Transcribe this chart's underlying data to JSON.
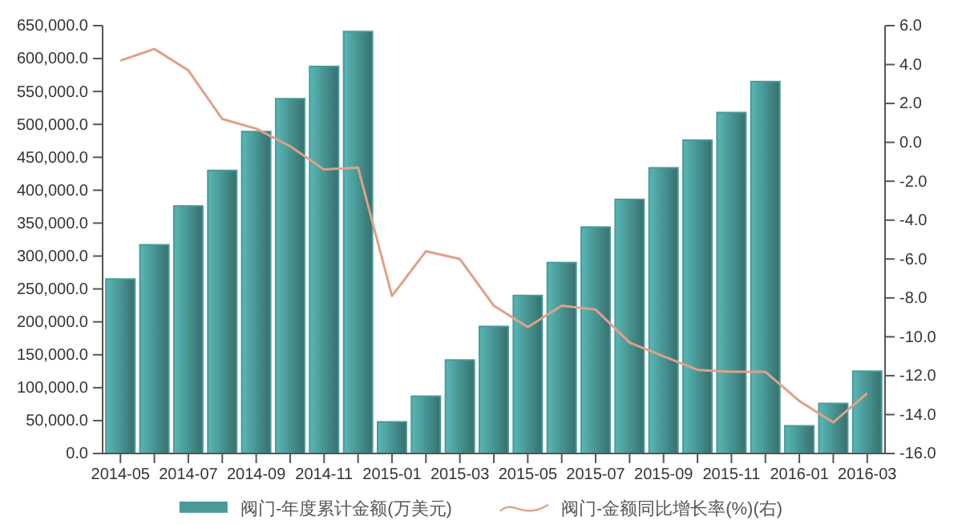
{
  "chart_data": {
    "type": "bar",
    "categories": [
      "2014-05",
      null,
      "2014-07",
      null,
      "2014-09",
      null,
      "2014-11",
      null,
      "2015-01",
      null,
      "2015-03",
      null,
      "2015-05",
      null,
      "2015-07",
      null,
      "2015-09",
      null,
      "2015-11",
      null,
      "2016-01",
      null,
      "2016-03"
    ],
    "series": [
      {
        "name": "阀门-年度累计金额(万美元)",
        "color": "#4a9a98",
        "values": [
          265000,
          317000,
          376000,
          430000,
          489000,
          539000,
          588000,
          641000,
          48000,
          87000,
          142000,
          193000,
          240000,
          290000,
          344000,
          386000,
          434000,
          476000,
          518000,
          565000,
          42000,
          76000,
          125000
        ]
      },
      {
        "name": "阀门-金额同比增长率(%)(右)",
        "type": "line",
        "axis": "y2",
        "color": "#e0a088",
        "values": [
          4.2,
          4.8,
          3.7,
          1.2,
          0.7,
          -0.2,
          -1.4,
          -1.3,
          -7.9,
          -5.6,
          -6.0,
          -8.4,
          -9.5,
          -8.4,
          -8.6,
          -10.3,
          -11.0,
          -11.7,
          -11.8,
          -11.8,
          -13.3,
          -14.4,
          -12.9
        ]
      }
    ],
    "ylim": [
      0,
      650000
    ],
    "yticks": [
      {
        "value": 0,
        "label": "0.0"
      },
      {
        "value": 50000,
        "label": "50,000.0"
      },
      {
        "value": 100000,
        "label": "100,000.0"
      },
      {
        "value": 150000,
        "label": "150,000.0"
      },
      {
        "value": 200000,
        "label": "200,000.0"
      },
      {
        "value": 250000,
        "label": "250,000.0"
      },
      {
        "value": 300000,
        "label": "300,000.0"
      },
      {
        "value": 350000,
        "label": "350,000.0"
      },
      {
        "value": 400000,
        "label": "400,000.0"
      },
      {
        "value": 450000,
        "label": "450,000.0"
      },
      {
        "value": 500000,
        "label": "500,000.0"
      },
      {
        "value": 550000,
        "label": "550,000.0"
      },
      {
        "value": 600000,
        "label": "600,000.0"
      },
      {
        "value": 650000,
        "label": "650,000.0"
      }
    ],
    "y2lim": [
      -16,
      6
    ],
    "y2ticks": [
      {
        "value": -16,
        "label": "-16.0"
      },
      {
        "value": -14,
        "label": "-14.0"
      },
      {
        "value": -12,
        "label": "-12.0"
      },
      {
        "value": -10,
        "label": "-10.0"
      },
      {
        "value": -8,
        "label": "-8.0"
      },
      {
        "value": -6,
        "label": "-6.0"
      },
      {
        "value": -4,
        "label": "-4.0"
      },
      {
        "value": -2,
        "label": "-2.0"
      },
      {
        "value": 0,
        "label": "0.0"
      },
      {
        "value": 2,
        "label": "2.0"
      },
      {
        "value": 4,
        "label": "4.0"
      },
      {
        "value": 6,
        "label": "6.0"
      }
    ],
    "legend": "bottom",
    "marker": "none",
    "line_style": "solid"
  }
}
